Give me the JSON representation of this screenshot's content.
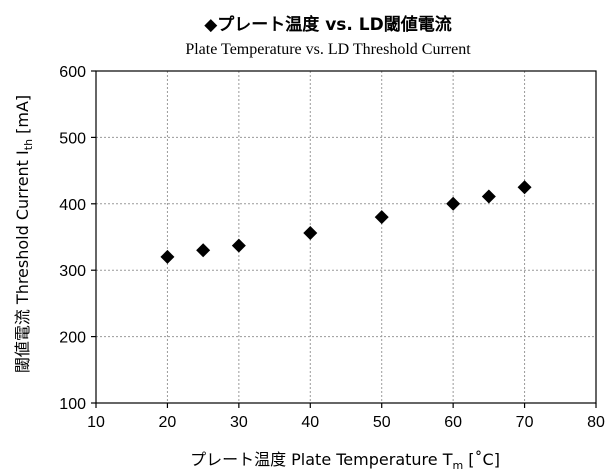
{
  "chart_data": {
    "type": "scatter",
    "title": "◆プレート温度 vs. LD閾値電流",
    "subtitle": "Plate Temperature vs. LD Threshold Current",
    "xlabel": {
      "main": "プレート温度 Plate Temperature T",
      "sub": "m",
      "unit": " [˚C]"
    },
    "ylabel": {
      "main": "閾値電流 Threshold Current  I",
      "sub": "th",
      "unit": " [mA]"
    },
    "xlim": [
      10,
      80
    ],
    "ylim": [
      100,
      600
    ],
    "xticks": [
      10,
      20,
      30,
      40,
      50,
      60,
      70,
      80
    ],
    "yticks": [
      100,
      200,
      300,
      400,
      500,
      600
    ],
    "grid": true,
    "marker": "diamond",
    "x": [
      20,
      25,
      30,
      40,
      50,
      60,
      65,
      70
    ],
    "y": [
      320,
      330,
      337,
      356,
      380,
      400,
      411,
      425
    ]
  }
}
